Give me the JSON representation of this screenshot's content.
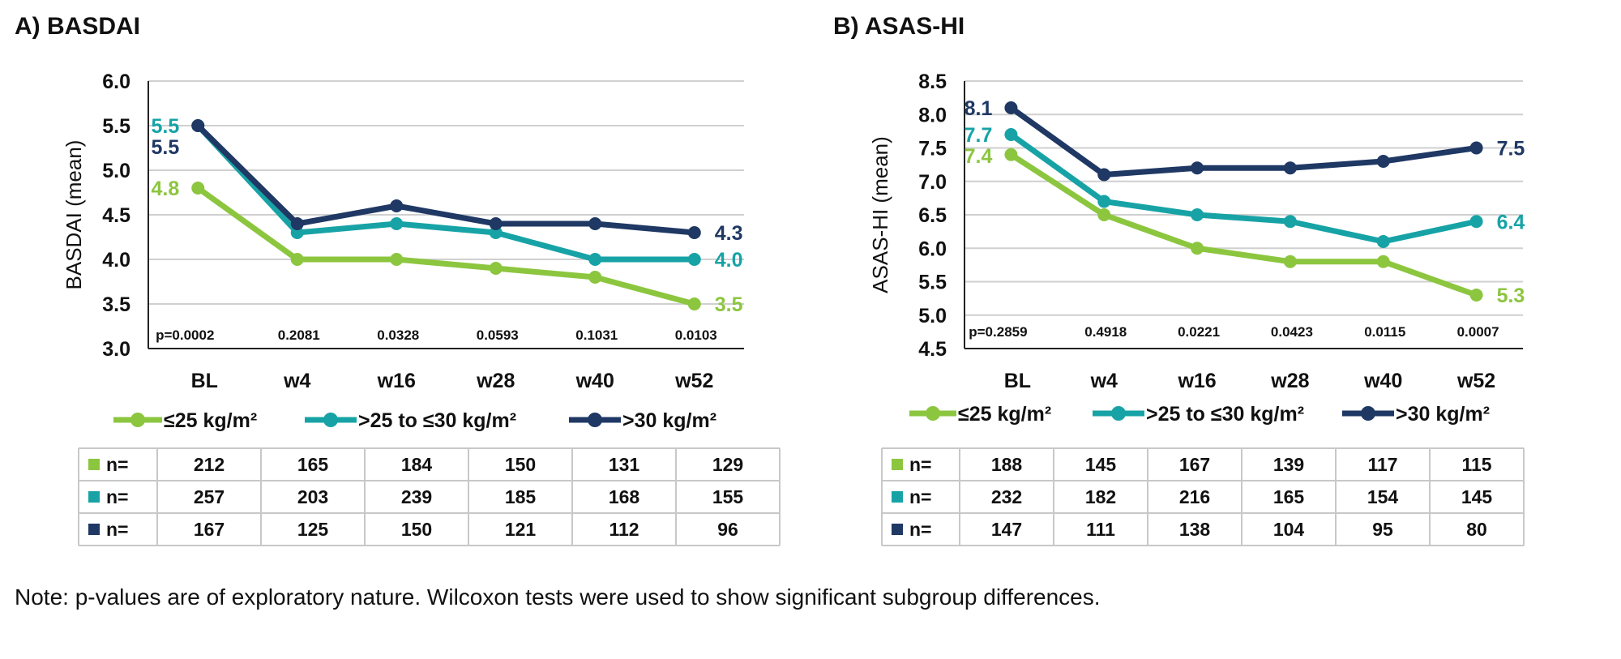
{
  "colors": {
    "le25": "#8cc63f",
    "gt25_le30": "#17a3a6",
    "gt30": "#1f3864",
    "grid": "#d0d0d0",
    "axis": "#222222",
    "table_border": "#c8c8c8"
  },
  "legend": [
    {
      "key": "le25",
      "label": "≤25 kg/m²"
    },
    {
      "key": "gt25_le30",
      "label": ">25 to ≤30  kg/m²"
    },
    {
      "key": "gt30",
      "label": ">30  kg/m²"
    }
  ],
  "note": "Note: p-values are of exploratory nature. Wilcoxon tests were used to show significant subgroup differences.",
  "chart_data": [
    {
      "type": "line",
      "title": "A) BASDAI",
      "xlabel": "",
      "ylabel": "BASDAI (mean)",
      "ylim": [
        3.0,
        6.0
      ],
      "yticks": [
        "3.0",
        "3.5",
        "4.0",
        "4.5",
        "5.0",
        "5.5",
        "6.0"
      ],
      "categories": [
        "BL",
        "w4",
        "w16",
        "w28",
        "w40",
        "w52"
      ],
      "pvalues": [
        "p=0.0002",
        "0.2081",
        "0.0328",
        "0.0593",
        "0.1031",
        "0.0103"
      ],
      "series": [
        {
          "key": "le25",
          "name": "≤25 kg/m²",
          "values": [
            4.8,
            4.0,
            4.0,
            3.9,
            3.8,
            3.5
          ],
          "start_label": "4.8",
          "end_label": "3.5"
        },
        {
          "key": "gt25_le30",
          "name": ">25 to ≤30  kg/m²",
          "values": [
            5.5,
            4.3,
            4.4,
            4.3,
            4.0,
            4.0
          ],
          "start_label": "5.5",
          "end_label": "4.0"
        },
        {
          "key": "gt30",
          "name": ">30  kg/m²",
          "values": [
            5.5,
            4.4,
            4.6,
            4.4,
            4.4,
            4.3
          ],
          "start_label": "5.5",
          "end_label": "4.3"
        }
      ],
      "table": {
        "row_label": "n=",
        "rows": [
          {
            "key": "le25",
            "values": [
              "212",
              "165",
              "184",
              "150",
              "131",
              "129"
            ]
          },
          {
            "key": "gt25_le30",
            "values": [
              "257",
              "203",
              "239",
              "185",
              "168",
              "155"
            ]
          },
          {
            "key": "gt30",
            "values": [
              "167",
              "125",
              "150",
              "121",
              "112",
              "96"
            ]
          }
        ]
      }
    },
    {
      "type": "line",
      "title": "B) ASAS-HI",
      "xlabel": "",
      "ylabel": "ASAS-HI (mean)",
      "ylim": [
        4.5,
        8.5
      ],
      "yticks": [
        "4.5",
        "5.0",
        "5.5",
        "6.0",
        "6.5",
        "7.0",
        "7.5",
        "8.0",
        "8.5"
      ],
      "categories": [
        "BL",
        "w4",
        "w16",
        "w28",
        "w40",
        "w52"
      ],
      "pvalues": [
        "p=0.2859",
        "0.4918",
        "0.0221",
        "0.0423",
        "0.0115",
        "0.0007"
      ],
      "series": [
        {
          "key": "le25",
          "name": "≤25 kg/m²",
          "values": [
            7.4,
            6.5,
            6.0,
            5.8,
            5.8,
            5.3
          ],
          "start_label": "7.4",
          "end_label": "5.3"
        },
        {
          "key": "gt25_le30",
          "name": ">25 to ≤30  kg/m²",
          "values": [
            7.7,
            6.7,
            6.5,
            6.4,
            6.1,
            6.4
          ],
          "start_label": "7.7",
          "end_label": "6.4"
        },
        {
          "key": "gt30",
          "name": ">30  kg/m²",
          "values": [
            8.1,
            7.1,
            7.2,
            7.2,
            7.3,
            7.5
          ],
          "start_label": "8.1",
          "end_label": "7.5"
        }
      ],
      "table": {
        "row_label": "n=",
        "rows": [
          {
            "key": "le25",
            "values": [
              "188",
              "145",
              "167",
              "139",
              "117",
              "115"
            ]
          },
          {
            "key": "gt25_le30",
            "values": [
              "232",
              "182",
              "216",
              "165",
              "154",
              "145"
            ]
          },
          {
            "key": "gt30",
            "values": [
              "147",
              "111",
              "138",
              "104",
              "95",
              "80"
            ]
          }
        ]
      }
    }
  ]
}
